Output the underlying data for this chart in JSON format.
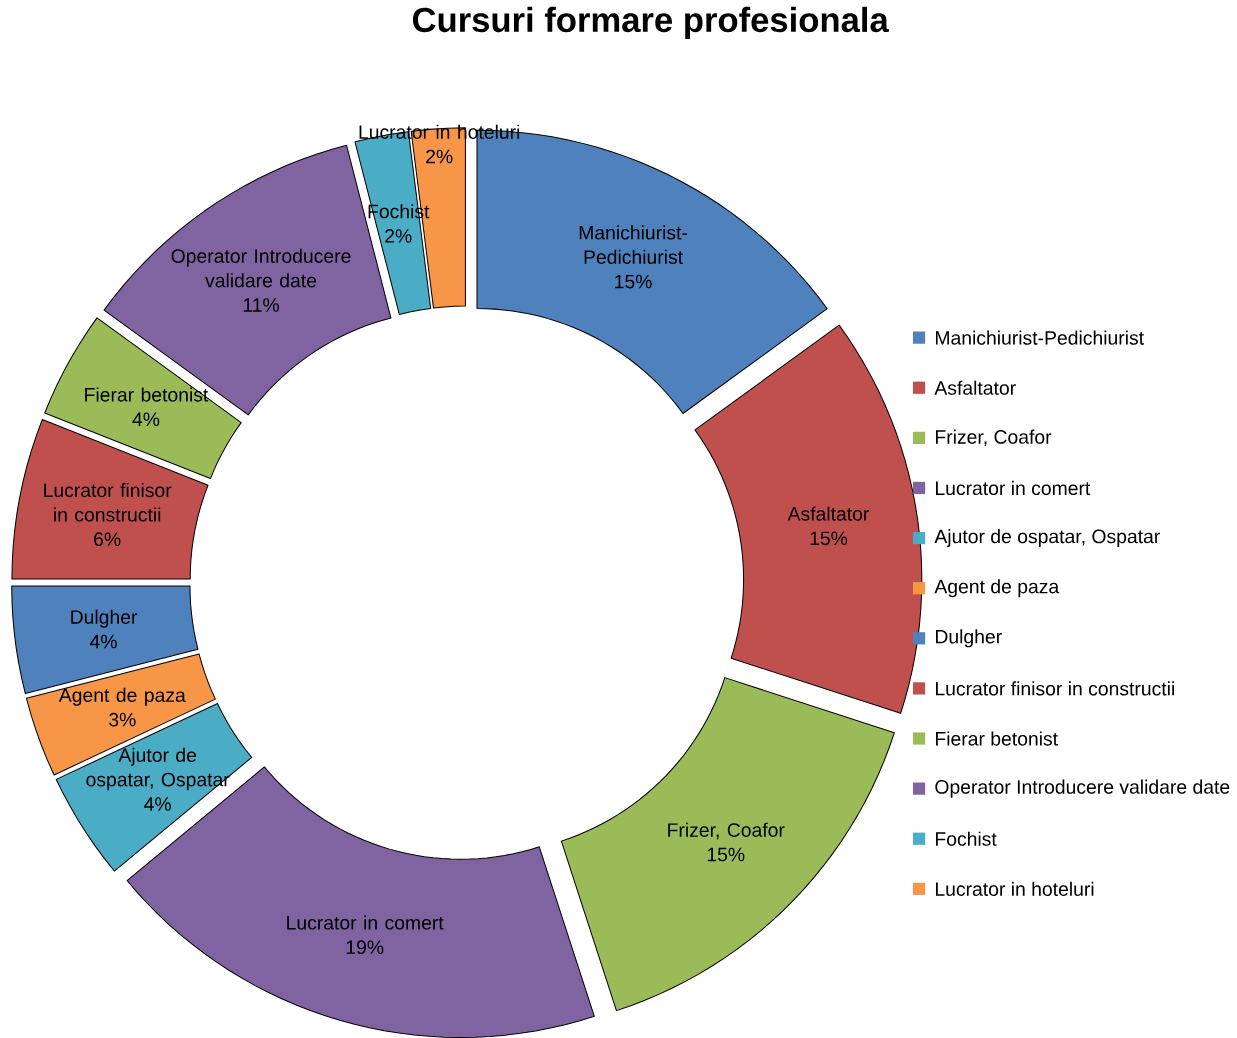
{
  "chart_data": {
    "type": "donut",
    "title": "Cursuri formare profesionala",
    "categories": [
      "Manichiurist-Pedichiurist",
      "Asfaltator",
      "Frizer, Coafor",
      "Lucrator in comert",
      "Ajutor de ospatar, Ospatar",
      "Agent de paza",
      "Dulgher",
      "Lucrator finisor in constructii",
      "Fierar betonist",
      "Operator Introducere validare date",
      "Fochist",
      "Lucrator in hoteluri"
    ],
    "values": [
      15,
      15,
      15,
      19,
      4,
      3,
      4,
      6,
      4,
      11,
      2,
      2
    ],
    "colors": [
      "#4f81bd",
      "#c0504d",
      "#9bbb59",
      "#8064a2",
      "#4bacc6",
      "#f79646",
      "#4f81bd",
      "#c0504d",
      "#9bbb59",
      "#8064a2",
      "#4bacc6",
      "#f79646"
    ],
    "value_labels": [
      "15%",
      "15%",
      "15%",
      "19%",
      "4%",
      "3%",
      "4%",
      "6%",
      "4%",
      "11%",
      "2%",
      "2%"
    ],
    "legend": "right"
  }
}
